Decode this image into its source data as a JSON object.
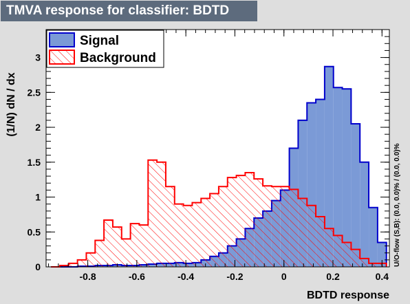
{
  "title": "TMVA response for classifier: BDTD",
  "overflow_note": "U/O-flow (S,B): (0.0, 0.0)% / (0.0, 0.0)%",
  "colors": {
    "signal_fill": "#7b9ad6",
    "signal_line": "#0000cc",
    "background_line": "#ff0000",
    "frame_bg": "#ffffff",
    "page_bg": "#dedede",
    "title_bg": "#5d6b7d"
  },
  "chart_data": {
    "type": "histogram",
    "xlabel": "BDTD response",
    "ylabel": "(1/N) dN / dx",
    "xlim": [
      -0.97,
      0.43
    ],
    "ylim": [
      0,
      3.4
    ],
    "x_ticks": [
      -0.8,
      -0.6,
      -0.4,
      -0.2,
      0,
      0.2,
      0.4
    ],
    "x_tick_labels": [
      "-0.8",
      "-0.6",
      "-0.4",
      "-0.2",
      "0",
      "0.2",
      "0.4"
    ],
    "y_ticks": [
      0,
      0.5,
      1,
      1.5,
      2,
      2.5,
      3
    ],
    "y_tick_labels": [
      "0",
      "0.5",
      "1",
      "1.5",
      "2",
      "2.5",
      "3"
    ],
    "bin_edges": [
      -0.95,
      -0.914,
      -0.878,
      -0.842,
      -0.806,
      -0.77,
      -0.734,
      -0.698,
      -0.662,
      -0.626,
      -0.59,
      -0.554,
      -0.518,
      -0.482,
      -0.446,
      -0.41,
      -0.374,
      -0.338,
      -0.302,
      -0.266,
      -0.23,
      -0.194,
      -0.158,
      -0.122,
      -0.086,
      -0.05,
      -0.014,
      0.022,
      0.058,
      0.094,
      0.13,
      0.166,
      0.202,
      0.238,
      0.274,
      0.31,
      0.346,
      0.382,
      0.418
    ],
    "legend": {
      "position": "top-left",
      "entries": [
        "Signal",
        "Background"
      ]
    },
    "series": [
      {
        "name": "Signal",
        "style": "solid-fill",
        "values": [
          0.0,
          0.0,
          0.0,
          0.01,
          0.01,
          0.02,
          0.02,
          0.03,
          0.02,
          0.02,
          0.03,
          0.04,
          0.05,
          0.05,
          0.06,
          0.05,
          0.06,
          0.1,
          0.15,
          0.2,
          0.3,
          0.4,
          0.55,
          0.7,
          0.8,
          0.95,
          1.1,
          1.7,
          2.1,
          2.35,
          2.4,
          2.87,
          2.57,
          2.55,
          2.05,
          1.5,
          0.85,
          0.35
        ]
      },
      {
        "name": "Background",
        "style": "hatched",
        "values": [
          0.0,
          0.02,
          0.05,
          0.1,
          0.2,
          0.38,
          0.67,
          0.57,
          0.4,
          0.62,
          0.6,
          1.53,
          1.5,
          1.15,
          0.9,
          0.88,
          0.92,
          0.98,
          1.05,
          1.15,
          1.28,
          1.31,
          1.35,
          1.26,
          1.16,
          1.15,
          1.15,
          1.11,
          0.98,
          0.88,
          0.72,
          0.55,
          0.45,
          0.35,
          0.25,
          0.12,
          0.05,
          0.05
        ]
      }
    ]
  }
}
